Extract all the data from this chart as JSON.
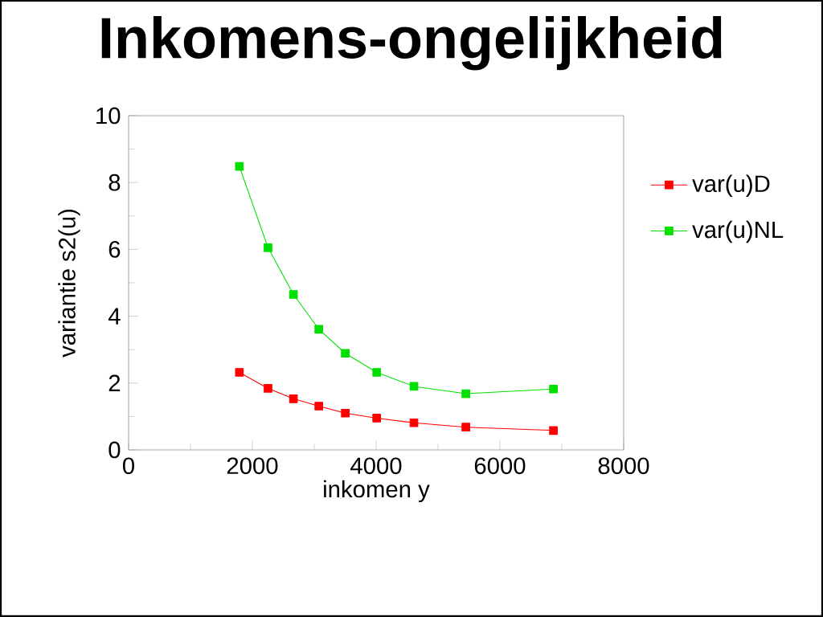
{
  "chart_data": {
    "type": "line",
    "title": "Inkomens-ongelijkheid",
    "xlabel": "inkomen y",
    "ylabel": "variantie s2(u)",
    "xlim": [
      0,
      8000
    ],
    "xticks": [
      0,
      2000,
      4000,
      6000,
      8000
    ],
    "ylim": [
      0,
      10
    ],
    "yticks": [
      0,
      2,
      4,
      6,
      8,
      10
    ],
    "marker": "square",
    "line_style": "solid",
    "grid": false,
    "legend": "right",
    "series": [
      {
        "name": "var(u)D",
        "color": "#ff0000",
        "x": [
          1790,
          2253,
          2664,
          3074,
          3502,
          4009,
          4611,
          5450,
          6865
        ],
        "values": [
          2.32,
          1.84,
          1.53,
          1.31,
          1.1,
          0.95,
          0.81,
          0.68,
          0.58
        ]
      },
      {
        "name": "var(u)NL",
        "color": "#00e000",
        "x": [
          1790,
          2253,
          2664,
          3074,
          3502,
          4009,
          4611,
          5450,
          6865
        ],
        "values": [
          8.48,
          6.05,
          4.65,
          3.61,
          2.89,
          2.32,
          1.9,
          1.68,
          1.82
        ]
      }
    ]
  }
}
